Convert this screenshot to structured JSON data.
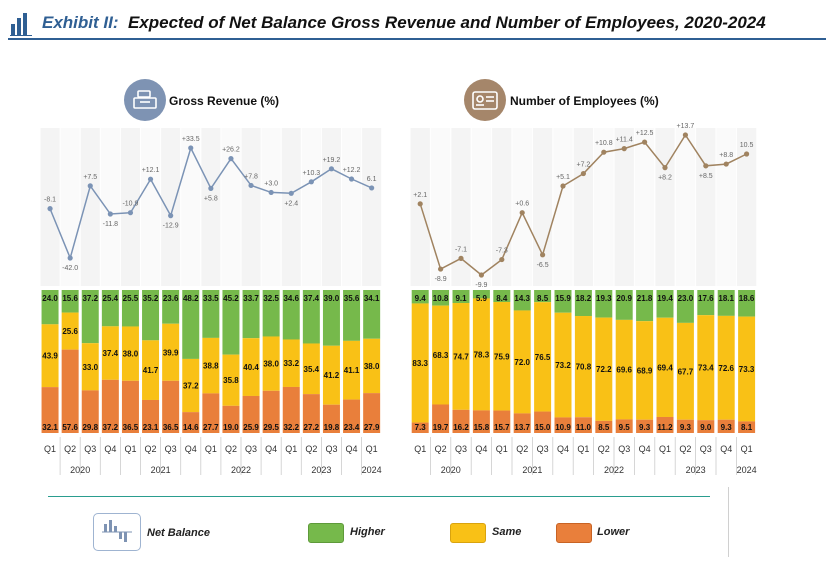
{
  "header": {
    "exhibit": "Exhibit  II:",
    "title": "Expected of Net Balance Gross Revenue and Number of Employees, 2020-2024"
  },
  "colors": {
    "higher": "#76b94b",
    "same": "#f9c116",
    "lower": "#e97f3b",
    "revenue_line": "#7b93b5",
    "employees_line": "#a08360",
    "accent": "#2f5f93"
  },
  "icons": [
    "bar-chart-logo-icon",
    "cash-register-icon",
    "id-card-icon",
    "net-balance-icon"
  ],
  "legend": {
    "net_balance": "Net Balance",
    "higher": "Higher",
    "same": "Same",
    "lower": "Lower"
  },
  "chart_data": [
    {
      "type": "line",
      "title": "Gross Revenue (%)",
      "x": [
        "Q1",
        "Q2",
        "Q3",
        "Q4",
        "Q1",
        "Q2",
        "Q3",
        "Q4",
        "Q1",
        "Q2",
        "Q3",
        "Q4",
        "Q1",
        "Q2",
        "Q3",
        "Q4",
        "Q1"
      ],
      "years": [
        "2020",
        "2021",
        "2022",
        "2023",
        "2024"
      ],
      "series": [
        {
          "values": [
            -8.1,
            -42.0,
            7.5,
            -11.8,
            -10.9,
            12.1,
            -12.9,
            33.5,
            5.8,
            26.2,
            7.8,
            3.0,
            2.4,
            10.3,
            19.2,
            12.2,
            6.1
          ]
        }
      ],
      "labels": [
        "-8.1",
        "-42.0",
        "+7.5",
        "-11.8",
        "-10.9",
        "+12.1",
        "-12.9",
        "+33.5",
        "+5.8",
        "+26.2",
        "+7.8",
        "+3.0",
        "+2.4",
        "+10.3",
        "+19.2",
        "+12.2",
        "6.1"
      ]
    },
    {
      "type": "bar",
      "stacked": true,
      "categories": [
        "Q1",
        "Q2",
        "Q3",
        "Q4",
        "Q1",
        "Q2",
        "Q3",
        "Q4",
        "Q1",
        "Q2",
        "Q3",
        "Q4",
        "Q1",
        "Q2",
        "Q3",
        "Q4",
        "Q1"
      ],
      "years": [
        "2020",
        "2021",
        "2022",
        "2023",
        "2024"
      ],
      "series": [
        {
          "name": "Higher",
          "values": [
            24.0,
            15.6,
            37.2,
            25.4,
            25.5,
            35.2,
            23.6,
            48.2,
            33.5,
            45.2,
            33.7,
            32.5,
            34.6,
            37.4,
            39.0,
            35.6,
            34.1
          ]
        },
        {
          "name": "Same",
          "values": [
            43.9,
            25.6,
            33.0,
            37.4,
            38.0,
            41.7,
            39.9,
            37.2,
            38.8,
            35.8,
            40.4,
            38.0,
            33.2,
            35.4,
            41.2,
            41.1,
            38.0
          ]
        },
        {
          "name": "Lower",
          "values": [
            32.1,
            57.6,
            29.8,
            37.2,
            36.5,
            23.1,
            36.5,
            14.6,
            27.7,
            19.0,
            25.9,
            29.5,
            32.2,
            27.2,
            19.8,
            23.4,
            27.9
          ]
        }
      ]
    },
    {
      "type": "line",
      "title": "Number of Employees (%)",
      "x": [
        "Q1",
        "Q2",
        "Q3",
        "Q4",
        "Q1",
        "Q2",
        "Q3",
        "Q4",
        "Q1",
        "Q2",
        "Q3",
        "Q4",
        "Q1",
        "Q2",
        "Q3",
        "Q4",
        "Q1"
      ],
      "years": [
        "2020",
        "2021",
        "2022",
        "2023",
        "2024"
      ],
      "series": [
        {
          "values": [
            2.1,
            -8.9,
            -7.1,
            -9.9,
            -7.3,
            0.6,
            -6.5,
            5.1,
            7.2,
            10.8,
            11.4,
            12.5,
            8.2,
            13.7,
            8.5,
            8.8,
            10.5
          ]
        }
      ],
      "labels": [
        "+2.1",
        "-8.9",
        "-7.1",
        "-9.9",
        "-7.3",
        "+0.6",
        "-6.5",
        "+5.1",
        "+7.2",
        "+10.8",
        "+11.4",
        "+12.5",
        "+8.2",
        "+13.7",
        "+8.5",
        "+8.8",
        "10.5"
      ]
    },
    {
      "type": "bar",
      "stacked": true,
      "categories": [
        "Q1",
        "Q2",
        "Q3",
        "Q4",
        "Q1",
        "Q2",
        "Q3",
        "Q4",
        "Q1",
        "Q2",
        "Q3",
        "Q4",
        "Q1",
        "Q2",
        "Q3",
        "Q4",
        "Q1"
      ],
      "years": [
        "2020",
        "2021",
        "2022",
        "2023",
        "2024"
      ],
      "series": [
        {
          "name": "Higher",
          "values": [
            9.4,
            10.8,
            9.1,
            5.9,
            8.4,
            14.3,
            8.5,
            15.9,
            18.2,
            19.3,
            20.9,
            21.8,
            19.4,
            23.0,
            17.6,
            18.1,
            18.6
          ]
        },
        {
          "name": "Same",
          "values": [
            83.3,
            68.3,
            74.7,
            78.3,
            75.9,
            72.0,
            76.5,
            73.2,
            70.8,
            72.2,
            69.6,
            68.9,
            69.4,
            67.7,
            73.4,
            72.6,
            73.3
          ]
        },
        {
          "name": "Lower",
          "values": [
            7.3,
            19.7,
            16.2,
            15.8,
            15.7,
            13.7,
            15.0,
            10.9,
            11.0,
            8.5,
            9.5,
            9.3,
            11.2,
            9.3,
            9.0,
            9.3,
            8.1
          ]
        }
      ]
    }
  ]
}
